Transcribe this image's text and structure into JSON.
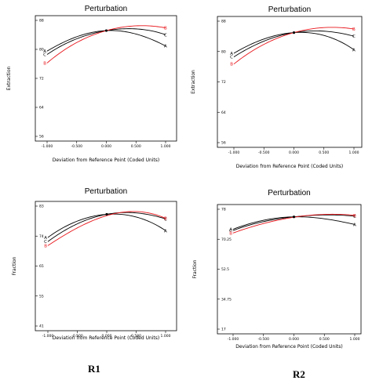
{
  "charts": [
    {
      "type": "line",
      "title": "Perturbation",
      "xlabel": "Deviation from Reference Point (Coded Units)",
      "ylabel": "Extraction",
      "xlim": [
        -1.0,
        1.0
      ],
      "ylim": [
        56,
        90
      ],
      "xticks": [
        "-1.000",
        "-0.500",
        "0.000",
        "0.500",
        "1.000"
      ],
      "yticks": [
        "56",
        "64",
        "72",
        "80",
        "88"
      ],
      "series": [
        {
          "name": "A",
          "color": "#000000",
          "x": [
            -1,
            -0.5,
            0,
            0.5,
            1
          ],
          "y": [
            81.0,
            85.2,
            87.0,
            86.0,
            82.5
          ]
        },
        {
          "name": "C",
          "color": "#000000",
          "x": [
            -1,
            -0.5,
            0,
            0.5,
            1
          ],
          "y": [
            80.0,
            84.6,
            87.0,
            87.5,
            85.8
          ]
        },
        {
          "name": "B",
          "color": "#e8141a",
          "x": [
            -1,
            -0.5,
            0,
            0.5,
            1
          ],
          "y": [
            77.5,
            83.5,
            87.0,
            88.4,
            87.8
          ]
        }
      ]
    },
    {
      "type": "line",
      "title": "Perturbation",
      "xlabel": "Deviation from Reference Point (Coded Units)",
      "ylabel": "Extraction",
      "xlim": [
        -1.0,
        1.0
      ],
      "ylim": [
        56,
        90
      ],
      "xticks": [
        "-1.000",
        "-0.500",
        "0.000",
        "0.500",
        "1.000"
      ],
      "yticks": [
        "56",
        "64",
        "72",
        "80",
        "88"
      ],
      "series": [
        {
          "name": "A",
          "color": "#000000",
          "x": [
            -1,
            -0.5,
            0,
            0.5,
            1
          ],
          "y": [
            81.0,
            85.0,
            86.8,
            86.0,
            82.0
          ]
        },
        {
          "name": "C",
          "color": "#000000",
          "x": [
            -1,
            -0.5,
            0,
            0.5,
            1
          ],
          "y": [
            80.0,
            84.4,
            86.8,
            87.2,
            85.8
          ]
        },
        {
          "name": "B",
          "color": "#e8141a",
          "x": [
            -1,
            -0.5,
            0,
            0.5,
            1
          ],
          "y": [
            78.0,
            83.5,
            86.8,
            88.2,
            87.8
          ]
        }
      ]
    },
    {
      "type": "line",
      "title": "Perturbation",
      "xlabel": "Deviation from Reference Point (Coded Units)",
      "ylabel": "Fraction",
      "xlim": [
        -1.0,
        1.0
      ],
      "ylim": [
        41,
        85
      ],
      "xticks": [
        "-1.000",
        "-0.500",
        "0.000",
        "0.500",
        "1.000"
      ],
      "yticks": [
        "41",
        "55",
        "65",
        "74",
        "83"
      ],
      "series": [
        {
          "name": "A",
          "color": "#000000",
          "x": [
            -1,
            -0.5,
            0,
            0.5,
            1
          ],
          "y": [
            73.5,
            79.5,
            82.0,
            81.0,
            76.0
          ]
        },
        {
          "name": "C",
          "color": "#000000",
          "x": [
            -1,
            -0.5,
            0,
            0.5,
            1
          ],
          "y": [
            72.0,
            78.5,
            82.0,
            82.5,
            80.3
          ]
        },
        {
          "name": "B",
          "color": "#e8141a",
          "x": [
            -1,
            -0.5,
            0,
            0.5,
            1
          ],
          "y": [
            70.5,
            77.0,
            81.5,
            83.0,
            80.5
          ]
        }
      ]
    },
    {
      "type": "line",
      "title": "Perturbation",
      "xlabel": "Deviation from Reference Point (Coded Units)",
      "ylabel": "Fraction",
      "xlim": [
        -1.0,
        1.0
      ],
      "ylim": [
        17,
        80
      ],
      "xticks": [
        "-1.000",
        "-0.500",
        "0.000",
        "0.500",
        "1.000"
      ],
      "yticks": [
        "17",
        "34.75",
        "52.5",
        "70.25",
        "78"
      ],
      "series": [
        {
          "name": "A",
          "color": "#000000",
          "x": [
            -1,
            -0.5,
            0,
            0.5,
            1
          ],
          "y": [
            69.5,
            74.2,
            76.0,
            75.0,
            72.0
          ]
        },
        {
          "name": "C",
          "color": "#000000",
          "x": [
            -1,
            -0.5,
            0,
            0.5,
            1
          ],
          "y": [
            68.8,
            73.5,
            76.0,
            77.0,
            76.3
          ]
        },
        {
          "name": "B",
          "color": "#e8141a",
          "x": [
            -1,
            -0.5,
            0,
            0.5,
            1
          ],
          "y": [
            67.5,
            72.5,
            75.8,
            77.3,
            76.8
          ]
        }
      ]
    }
  ],
  "captions": {
    "left": "R1",
    "right": "R2"
  }
}
